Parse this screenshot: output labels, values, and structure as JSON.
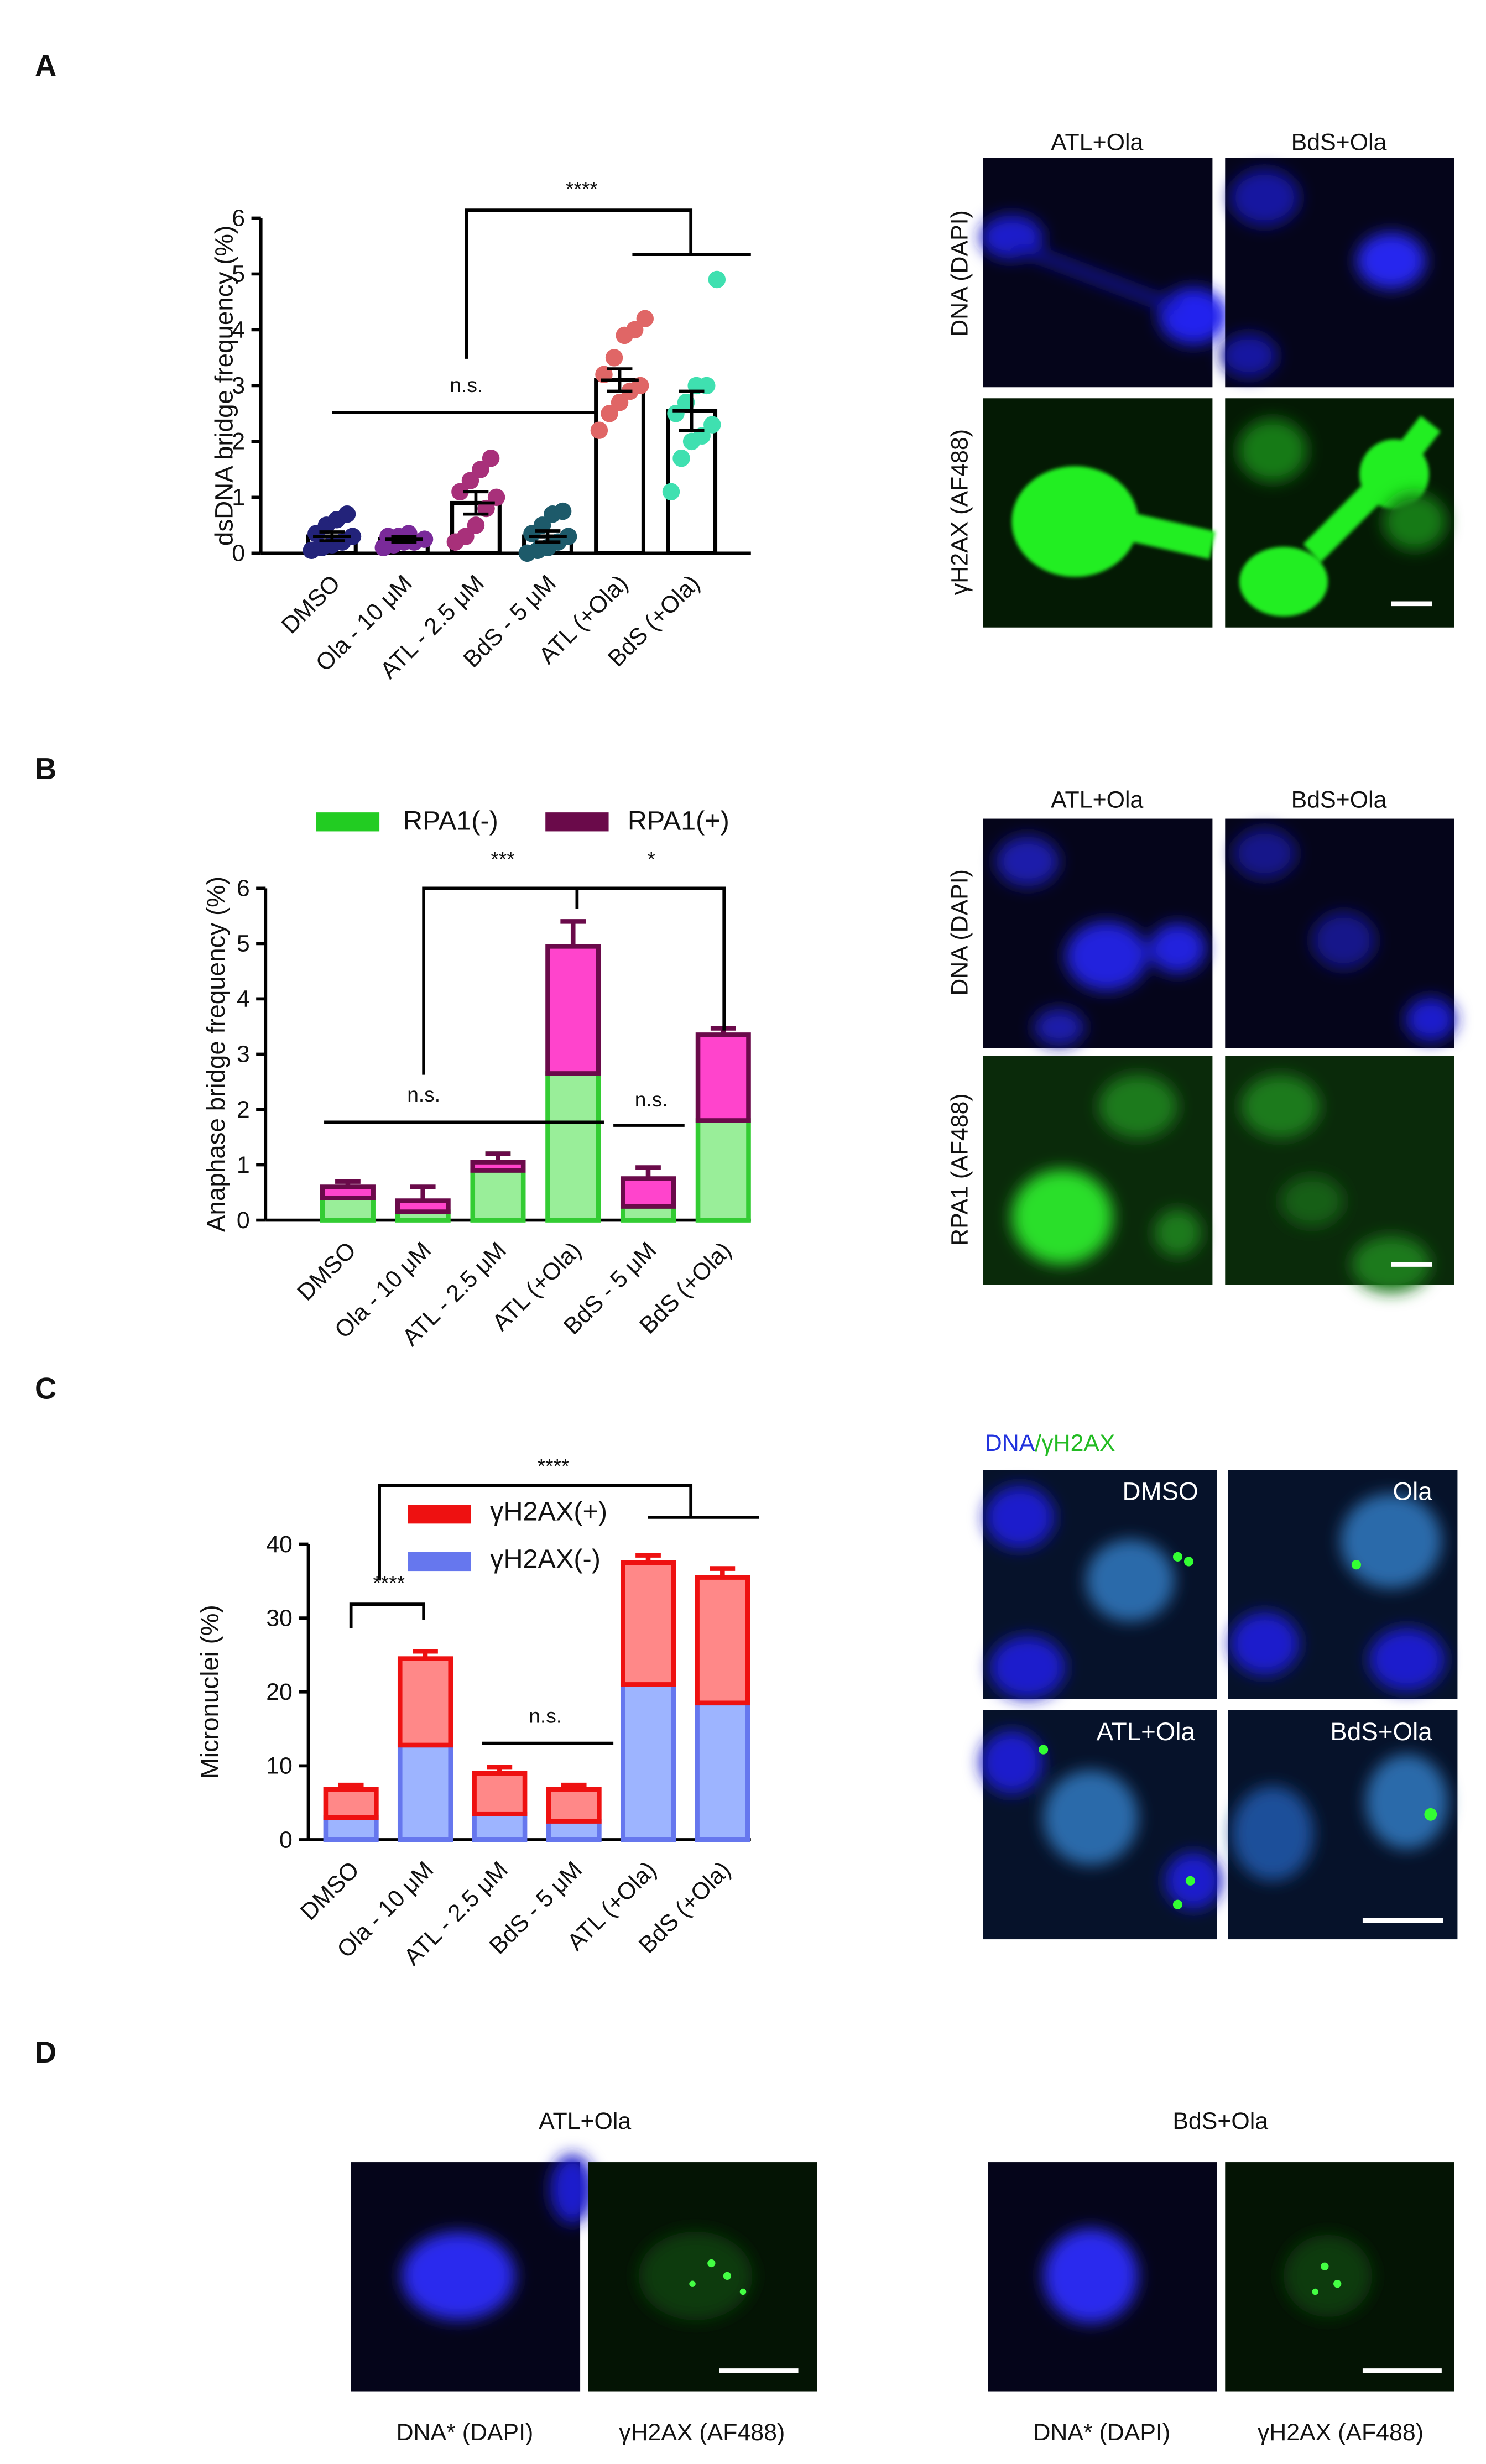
{
  "panel_labels": [
    "A",
    "B",
    "C",
    "D"
  ],
  "chart_data": [
    {
      "type": "bar",
      "ylabel": "dsDNA bridge frequency (%)",
      "categories": [
        "DMSO",
        "Ola - 10 μM",
        "ATL - 2.5 μM",
        "BdS - 5 μM",
        "ATL (+Ola)",
        "BdS (+Ola)"
      ],
      "values": [
        0.3,
        0.25,
        0.9,
        0.3,
        3.1,
        2.55
      ],
      "errors": [
        0.08,
        0.05,
        0.2,
        0.1,
        0.2,
        0.35
      ],
      "points": [
        [
          0.05,
          0.1,
          0.15,
          0.2,
          0.3,
          0.35,
          0.5,
          0.6,
          0.7
        ],
        [
          0.1,
          0.15,
          0.2,
          0.2,
          0.25,
          0.3,
          0.3,
          0.35
        ],
        [
          0.2,
          0.3,
          0.5,
          0.8,
          1.0,
          1.1,
          1.3,
          1.5,
          1.7
        ],
        [
          0,
          0.05,
          0.1,
          0.2,
          0.3,
          0.35,
          0.5,
          0.7,
          0.75
        ],
        [
          2.2,
          2.5,
          2.7,
          2.9,
          3.0,
          3.2,
          3.5,
          3.9,
          4.0,
          4.2
        ],
        [
          1.1,
          1.7,
          2.0,
          2.1,
          2.3,
          2.5,
          2.7,
          3.0,
          3.0,
          4.9
        ]
      ],
      "colors": [
        "#23237a",
        "#7a2a9a",
        "#a8307a",
        "#1d5a6a",
        "#e06666",
        "#3fe0b0"
      ],
      "bar_color": "#ffffff",
      "ylim": [
        0,
        6
      ],
      "yticks": [
        0,
        1,
        2,
        3,
        4,
        5,
        6
      ],
      "annotations": [
        "****",
        "n.s."
      ]
    },
    {
      "type": "stacked_bar",
      "ylabel": "Anaphase bridge frequency (%)",
      "categories": [
        "DMSO",
        "Ola - 10 μM",
        "ATL - 2.5 μM",
        "ATL (+Ola)",
        "BdS - 5 μM",
        "BdS (+Ola)"
      ],
      "series": [
        {
          "name": "RPA1(-)",
          "color": "#99ee99",
          "edge_color": "#33cc33",
          "legend_color": "#22cc22",
          "values": [
            0.4,
            0.15,
            0.9,
            2.65,
            0.25,
            1.8
          ],
          "errors": [
            0.15,
            0.08,
            0.3,
            0.7,
            0.1,
            0.15
          ]
        },
        {
          "name": "RPA1(+)",
          "color": "#ff44cc",
          "edge_color": "#6a0a4a",
          "legend_color": "#6a0a4a",
          "values": [
            0.2,
            0.2,
            0.15,
            2.3,
            0.5,
            1.55
          ],
          "errors": [
            0.1,
            0.25,
            0.15,
            0.45,
            0.2,
            0.12
          ]
        }
      ],
      "ylim": [
        0,
        6
      ],
      "yticks": [
        0,
        1,
        2,
        3,
        4,
        5,
        6
      ],
      "annotations": [
        "***",
        "*",
        "n.s.",
        "n.s."
      ]
    },
    {
      "type": "stacked_bar",
      "ylabel": "Micronuclei (%)",
      "categories": [
        "DMSO",
        "Ola - 10 μM",
        "ATL - 2.5 μM",
        "BdS - 5 μM",
        "ATL (+Ola)",
        "BdS (+Ola)"
      ],
      "series": [
        {
          "name": "γH2AX(-)",
          "color": "#9db4ff",
          "edge_color": "#6677ee",
          "legend_color": "#6677ee",
          "values": [
            3,
            12.8,
            3.5,
            2.5,
            21,
            18.5
          ],
          "errors": [
            0.8,
            1.5,
            0.8,
            0.8,
            2,
            1.5
          ]
        },
        {
          "name": "γH2AX(+)",
          "color": "#ff8888",
          "edge_color": "#ee1111",
          "legend_color": "#ee1111",
          "values": [
            3.8,
            11.7,
            5.5,
            4.3,
            16.5,
            17
          ],
          "errors": [
            0.6,
            1,
            0.8,
            0.6,
            1,
            1.2
          ]
        }
      ],
      "ylim": [
        0,
        40
      ],
      "yticks": [
        0,
        10,
        20,
        30,
        40
      ],
      "annotations": [
        "****",
        "****",
        "n.s."
      ]
    }
  ],
  "images": {
    "A": {
      "columns": [
        "ATL+Ola",
        "BdS+Ola"
      ],
      "rows": [
        "DNA (DAPI)",
        "γH2AX (AF488)"
      ]
    },
    "B": {
      "columns": [
        "ATL+Ola",
        "BdS+Ola"
      ],
      "rows": [
        "DNA (DAPI)",
        "RPA1 (AF488)"
      ]
    },
    "C": {
      "title": [
        "DNA",
        "/γH2AX"
      ],
      "labels": [
        "DMSO",
        "Ola",
        "ATL+Ola",
        "BdS+Ola"
      ]
    },
    "D": {
      "columns": [
        "ATL+Ola",
        "BdS+Ola"
      ],
      "captions": [
        "DNA* (DAPI)",
        "γH2AX (AF488)",
        "DNA* (DAPI)",
        "γH2AX (AF488)"
      ]
    }
  }
}
